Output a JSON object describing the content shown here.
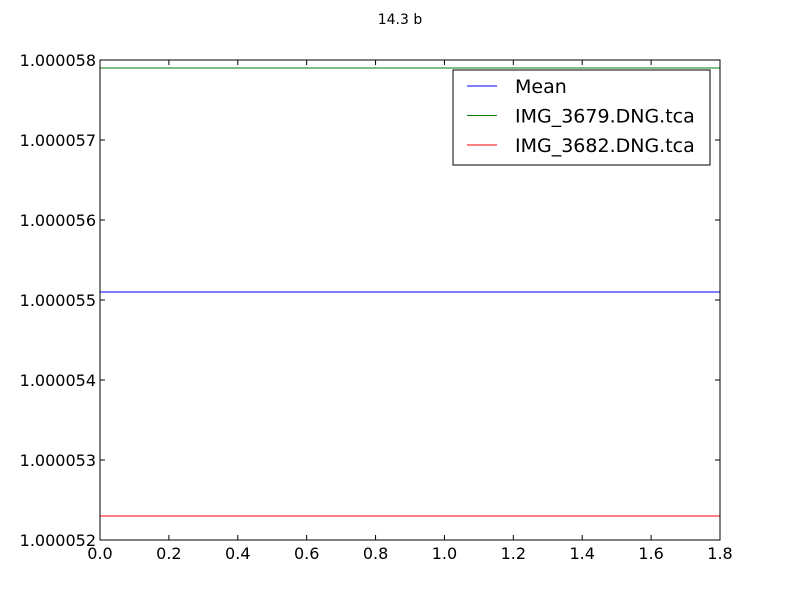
{
  "chart_data": {
    "type": "line",
    "title": "14.3 b",
    "xlabel": "",
    "ylabel": "",
    "xlim": [
      0.0,
      1.8
    ],
    "ylim": [
      1.000052,
      1.000058
    ],
    "x_ticks": [
      "0.0",
      "0.2",
      "0.4",
      "0.6",
      "0.8",
      "1.0",
      "1.2",
      "1.4",
      "1.6",
      "1.8"
    ],
    "y_ticks": [
      "1.000052",
      "1.000053",
      "1.000054",
      "1.000055",
      "1.000056",
      "1.000057",
      "1.000058"
    ],
    "grid": false,
    "legend_position": "top-right",
    "series": [
      {
        "name": "Mean",
        "color": "#0000ff",
        "x": [
          0.0,
          1.8
        ],
        "y": [
          1.0000551,
          1.0000551
        ]
      },
      {
        "name": "IMG_3679.DNG.tca",
        "color": "#008000",
        "x": [
          0.0,
          1.8
        ],
        "y": [
          1.0000579,
          1.0000579
        ]
      },
      {
        "name": "IMG_3682.DNG.tca",
        "color": "#ff0000",
        "x": [
          0.0,
          1.8
        ],
        "y": [
          1.0000523,
          1.0000523
        ]
      }
    ]
  }
}
